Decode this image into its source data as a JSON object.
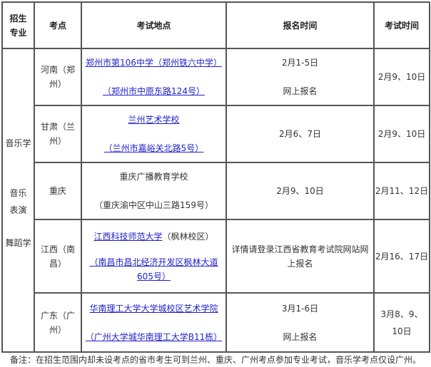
{
  "headers": [
    "招生专业",
    "考点",
    "考试地点",
    "报名时间",
    "考试时间"
  ],
  "majors": [
    "音乐学",
    "音乐表演",
    "舞蹈学"
  ],
  "rows": [
    {
      "site": "河南（郑州）",
      "place_link": "郑州市第106中学（郑州铁六中学）",
      "place_addr": "（郑州市中原东路124号）",
      "reg": [
        "2月1-5日",
        "网上报名"
      ],
      "exam": "2月9、10日"
    },
    {
      "site": "甘肃（兰州）",
      "place_link": "兰州艺术学校",
      "place_addr": "（兰州市嘉峪关北路5号）",
      "reg": [
        "2月6、7日"
      ],
      "exam": "2月9、10日"
    },
    {
      "site": "重庆",
      "place_name": "重庆广播教育学校",
      "place_addr": "（重庆渝中区中山三路159号）",
      "reg": [
        "2月9、10日"
      ],
      "exam": "2月11、12日"
    },
    {
      "site": "江西（南昌）",
      "place_link": "江西科技师范大学",
      "place_extra": "（枫林校区）",
      "place_addr": "（南昌市昌北经济开发区枫林大道605号）",
      "reg": [
        "详情请登录江西省教育考试院网站网上报名"
      ],
      "exam": "2月16、17日"
    },
    {
      "site": "广东（广州）",
      "place_link": "华南理工大学大学城校区艺术学院",
      "place_addr": "（广州大学城华南理工大学B11栋）",
      "reg": [
        "3月1-6日",
        "网上报名"
      ],
      "exam": "3月8、9、10日"
    }
  ],
  "note": "备注：在招生范围内却未设考点的省市考生可到兰州、重庆、广州考点参加专业考试，音乐学考点仅设广州。"
}
